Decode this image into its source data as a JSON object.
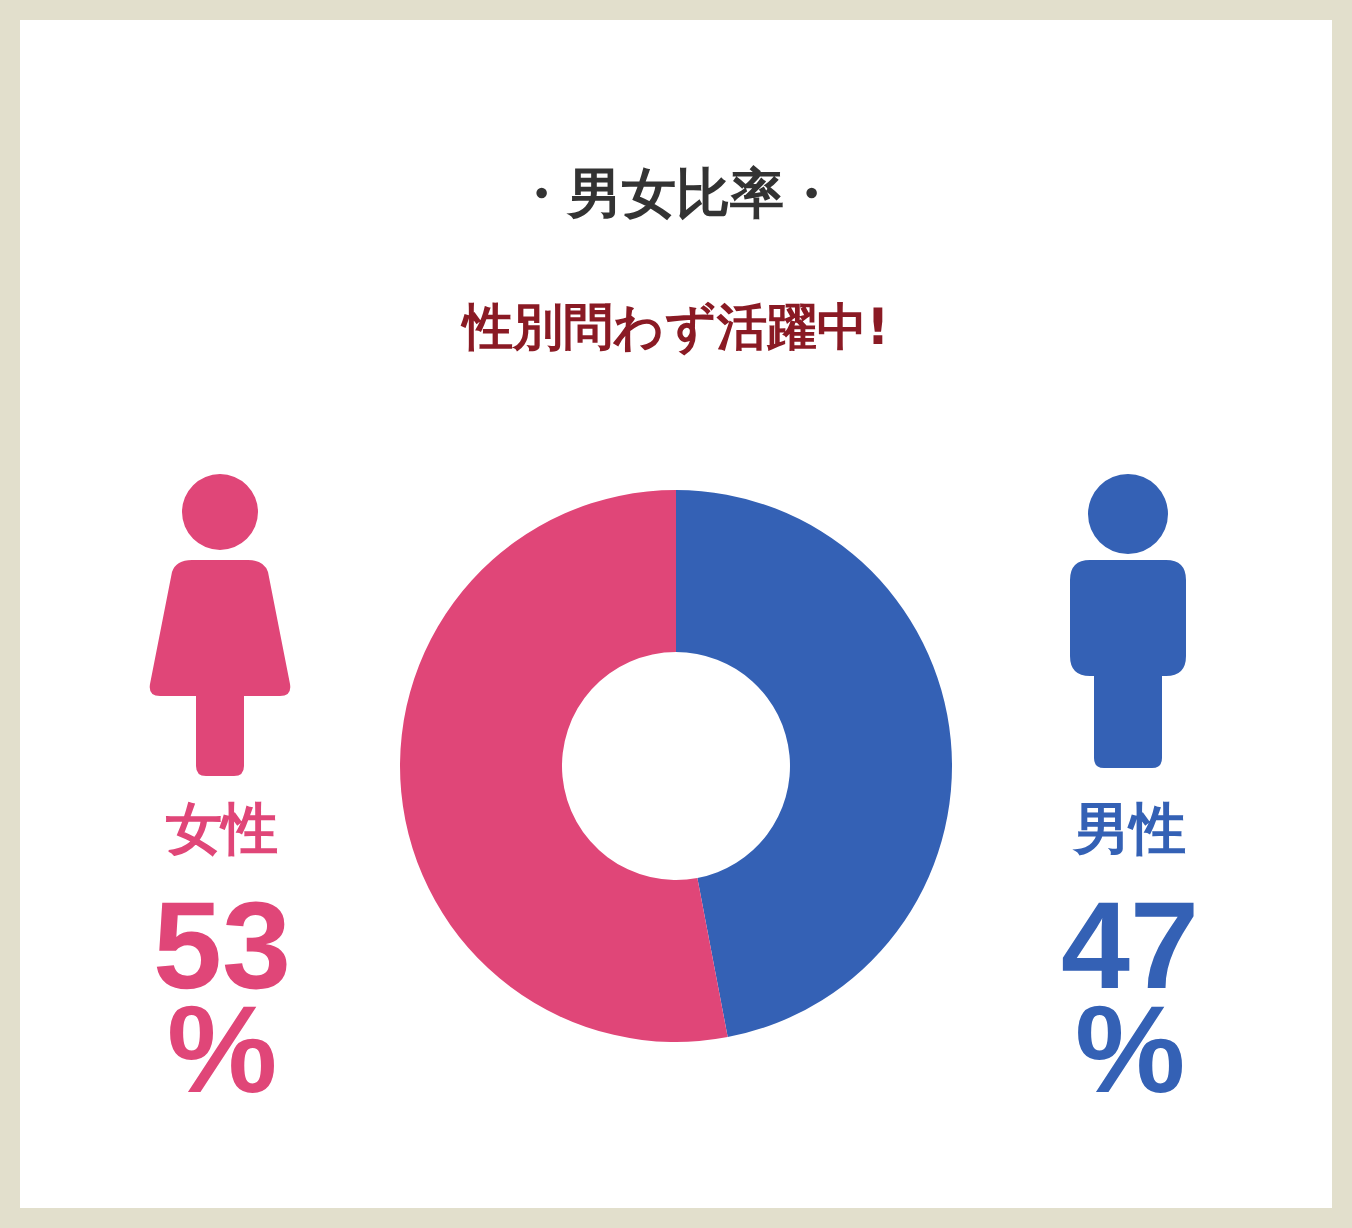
{
  "chart_data": {
    "type": "donut",
    "title": "・男女比率・",
    "subtitle": "性別問わず活躍中!",
    "categories": [
      "男性",
      "女性"
    ],
    "values": [
      47,
      53
    ],
    "colors": [
      "#3461b5",
      "#e04678"
    ],
    "value_labels": [
      "47%",
      "53%"
    ]
  }
}
